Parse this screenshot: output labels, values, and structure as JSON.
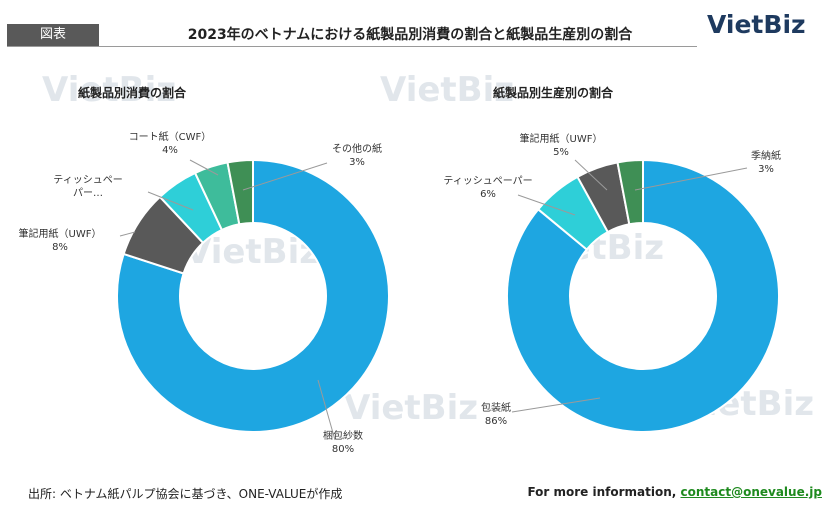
{
  "header": {
    "tag": "図表",
    "title": "2023年のベトナムにおける紙製品別消費の割合と紙製品生産別の割合",
    "brand": "VietBiz"
  },
  "watermark": "VietBiz",
  "colors": {
    "blue": "#1ea6e1",
    "gray": "#595959",
    "cyan": "#2ecfd8",
    "teal": "#3ebc9b",
    "green": "#3f8f55"
  },
  "chart_data": [
    {
      "type": "pie",
      "title": "紙製品別消費の割合",
      "categories": [
        "梱包紗数",
        "筆記用紙（UWF）",
        "ティッシュペーパー…",
        "コート紙（CWF）",
        "その他の紙"
      ],
      "values": [
        80,
        8,
        5,
        4,
        3
      ],
      "labels": [
        [
          "梱包紗数",
          "80%"
        ],
        [
          "筆記用紙（UWF）",
          "8%"
        ],
        [
          "ティッシュペー",
          "パー…"
        ],
        [
          "コート紙（CWF）",
          "4%"
        ],
        [
          "その他の紙",
          "3%"
        ]
      ],
      "colors": [
        "#1ea6e1",
        "#595959",
        "#2ecfd8",
        "#3ebc9b",
        "#3f8f55"
      ]
    },
    {
      "type": "pie",
      "title": "紙製品別生産別の割合",
      "categories": [
        "包装紙",
        "ティッシュペーパー",
        "筆記用紙（UWF）",
        "季納紙"
      ],
      "values": [
        86,
        6,
        5,
        3
      ],
      "labels": [
        [
          "包装紙",
          "86%"
        ],
        [
          "ティッシュペーパー",
          "6%"
        ],
        [
          "筆記用紙（UWF）",
          "5%"
        ],
        [
          "季納紙",
          "3%"
        ]
      ],
      "colors": [
        "#1ea6e1",
        "#2ecfd8",
        "#595959",
        "#3f8f55"
      ]
    }
  ],
  "footer": {
    "source": "出所: ベトナム紙パルプ協会に基づき、ONE-VALUEが作成",
    "more_label": "For more information, ",
    "contact": "contact@onevalue.jp"
  }
}
